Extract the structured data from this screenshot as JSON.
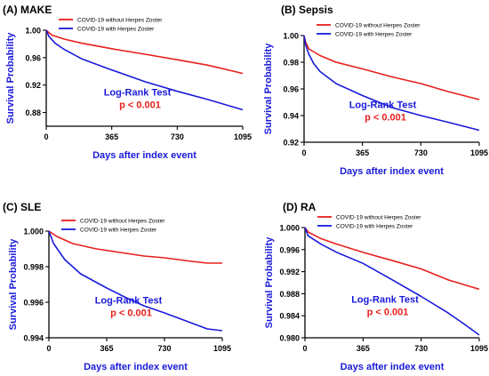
{
  "colors": {
    "without": "#e8201c",
    "with": "#1a1adb",
    "axis": "#000000",
    "label": "#1a1adb",
    "pvalue": "#e8201c"
  },
  "chart_data": [
    {
      "type": "line",
      "panel_label": "(A) MAKE",
      "xlabel": "Days after index event",
      "ylabel": "Survival Probability",
      "xlim": [
        0,
        1095
      ],
      "ylim": [
        0.86,
        1.0
      ],
      "xticks": [
        0,
        365,
        730,
        1095
      ],
      "yticks": [
        0.88,
        0.92,
        0.96,
        1.0
      ],
      "ytick_labels": [
        "0.88",
        "0.92",
        "0.96",
        "1.00"
      ],
      "test_label": "Log-Rank Test",
      "pvalue": "p < 0.001",
      "series": [
        {
          "name": "COVID-19 without Herpes Zoster",
          "color_key": "without",
          "x": [
            0,
            30,
            100,
            200,
            365,
            550,
            730,
            900,
            1095
          ],
          "y": [
            1.0,
            0.993,
            0.987,
            0.981,
            0.973,
            0.965,
            0.957,
            0.949,
            0.937
          ]
        },
        {
          "name": "COVID-19 with Herpes Zoster",
          "color_key": "with",
          "x": [
            0,
            15,
            50,
            100,
            200,
            365,
            550,
            730,
            900,
            1095
          ],
          "y": [
            1.0,
            0.991,
            0.981,
            0.972,
            0.958,
            0.942,
            0.925,
            0.911,
            0.899,
            0.884
          ]
        }
      ]
    },
    {
      "type": "line",
      "panel_label": "(B) Sepsis",
      "xlabel": "Days after index event",
      "ylabel": "Survival Probability",
      "xlim": [
        0,
        1095
      ],
      "ylim": [
        0.92,
        1.0
      ],
      "xticks": [
        0,
        365,
        730,
        1095
      ],
      "yticks": [
        0.92,
        0.94,
        0.96,
        0.98,
        1.0
      ],
      "ytick_labels": [
        "0.92",
        "0.94",
        "0.96",
        "0.98",
        "1.00"
      ],
      "test_label": "Log-Rank Test",
      "pvalue": "p < 0.001",
      "series": [
        {
          "name": "COVID-19 without Herpes Zoster",
          "color_key": "without",
          "x": [
            0,
            10,
            30,
            100,
            200,
            365,
            550,
            730,
            900,
            1095
          ],
          "y": [
            1.0,
            0.995,
            0.99,
            0.985,
            0.98,
            0.975,
            0.969,
            0.964,
            0.958,
            0.952
          ]
        },
        {
          "name": "COVID-19 with Herpes Zoster",
          "color_key": "with",
          "x": [
            0,
            10,
            30,
            60,
            100,
            200,
            365,
            550,
            730,
            900,
            1095
          ],
          "y": [
            1.0,
            0.993,
            0.986,
            0.979,
            0.973,
            0.964,
            0.955,
            0.946,
            0.94,
            0.935,
            0.929
          ]
        }
      ]
    },
    {
      "type": "line",
      "panel_label": "(C) SLE",
      "xlabel": "Days after index event",
      "ylabel": "Survival Probability",
      "xlim": [
        0,
        1095
      ],
      "ylim": [
        0.994,
        1.0
      ],
      "xticks": [
        0,
        365,
        730,
        1095
      ],
      "yticks": [
        0.994,
        0.996,
        0.998,
        1.0
      ],
      "ytick_labels": [
        "0.994",
        "0.996",
        "0.998",
        "1.000"
      ],
      "test_label": "Log-Rank Test",
      "pvalue": "p < 0.001",
      "series": [
        {
          "name": "COVID-19 without Herpes Zoster",
          "color_key": "without",
          "x": [
            0,
            50,
            150,
            300,
            450,
            600,
            730,
            900,
            1000,
            1095
          ],
          "y": [
            1.0,
            0.9997,
            0.9993,
            0.999,
            0.9988,
            0.9986,
            0.9985,
            0.9983,
            0.9982,
            0.9982
          ]
        },
        {
          "name": "COVID-19 with Herpes Zoster",
          "color_key": "with",
          "x": [
            0,
            30,
            100,
            200,
            365,
            500,
            600,
            730,
            850,
            1000,
            1095
          ],
          "y": [
            1.0,
            0.9993,
            0.9984,
            0.9976,
            0.9968,
            0.9962,
            0.9958,
            0.9954,
            0.995,
            0.9945,
            0.9944
          ]
        }
      ]
    },
    {
      "type": "line",
      "panel_label": "(D) RA",
      "xlabel": "Days after index event",
      "ylabel": "Survival Probability",
      "xlim": [
        0,
        1095
      ],
      "ylim": [
        0.98,
        1.0
      ],
      "xticks": [
        0,
        365,
        730,
        1095
      ],
      "yticks": [
        0.98,
        0.984,
        0.988,
        0.992,
        0.996,
        1.0
      ],
      "ytick_labels": [
        "0.980",
        "0.984",
        "0.988",
        "0.992",
        "0.996",
        "1.000"
      ],
      "test_label": "Log-Rank Test",
      "pvalue": "p < 0.001",
      "series": [
        {
          "name": "COVID-19 without Herpes Zoster",
          "color_key": "without",
          "x": [
            0,
            20,
            100,
            200,
            365,
            550,
            730,
            900,
            1095
          ],
          "y": [
            1.0,
            0.9992,
            0.998,
            0.997,
            0.9955,
            0.994,
            0.9925,
            0.9905,
            0.9888
          ]
        },
        {
          "name": "COVID-19 with Herpes Zoster",
          "color_key": "with",
          "x": [
            0,
            20,
            100,
            200,
            365,
            550,
            730,
            900,
            1000,
            1095
          ],
          "y": [
            1.0,
            0.9985,
            0.997,
            0.9955,
            0.9935,
            0.9905,
            0.9875,
            0.9845,
            0.9825,
            0.9805
          ]
        }
      ]
    }
  ]
}
